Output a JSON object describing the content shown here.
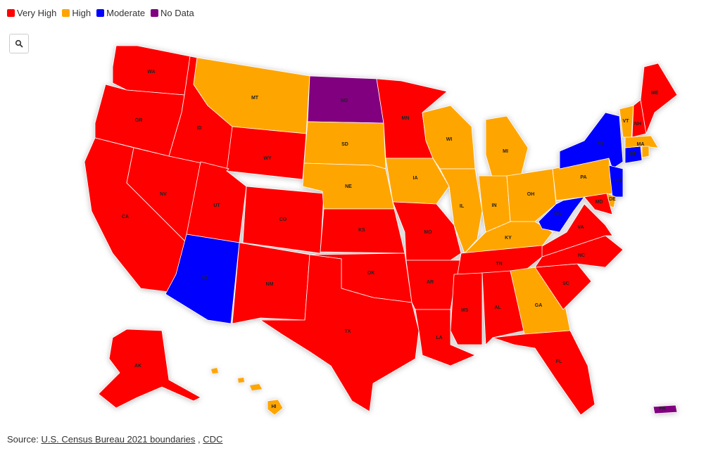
{
  "legend": [
    {
      "label": "Very High",
      "color": "#ff0000"
    },
    {
      "label": "High",
      "color": "#ffa500"
    },
    {
      "label": "Moderate",
      "color": "#0000ff"
    },
    {
      "label": "No Data",
      "color": "#800080"
    }
  ],
  "states": [
    {
      "abbr": "WA",
      "level": "Very High"
    },
    {
      "abbr": "OR",
      "level": "Very High"
    },
    {
      "abbr": "CA",
      "level": "Very High"
    },
    {
      "abbr": "NV",
      "level": "Very High"
    },
    {
      "abbr": "ID",
      "level": "Very High"
    },
    {
      "abbr": "MT",
      "level": "High"
    },
    {
      "abbr": "WY",
      "level": "Very High"
    },
    {
      "abbr": "UT",
      "level": "Very High"
    },
    {
      "abbr": "CO",
      "level": "Very High"
    },
    {
      "abbr": "AZ",
      "level": "Moderate"
    },
    {
      "abbr": "NM",
      "level": "Very High"
    },
    {
      "abbr": "ND",
      "level": "No Data"
    },
    {
      "abbr": "SD",
      "level": "High"
    },
    {
      "abbr": "NE",
      "level": "High"
    },
    {
      "abbr": "KS",
      "level": "Very High"
    },
    {
      "abbr": "OK",
      "level": "Very High"
    },
    {
      "abbr": "TX",
      "level": "Very High"
    },
    {
      "abbr": "MN",
      "level": "Very High"
    },
    {
      "abbr": "IA",
      "level": "High"
    },
    {
      "abbr": "MO",
      "level": "Very High"
    },
    {
      "abbr": "AR",
      "level": "Very High"
    },
    {
      "abbr": "LA",
      "level": "Very High"
    },
    {
      "abbr": "WI",
      "level": "High"
    },
    {
      "abbr": "IL",
      "level": "High"
    },
    {
      "abbr": "MI",
      "level": "High"
    },
    {
      "abbr": "IN",
      "level": "High"
    },
    {
      "abbr": "OH",
      "level": "High"
    },
    {
      "abbr": "KY",
      "level": "High"
    },
    {
      "abbr": "TN",
      "level": "Very High"
    },
    {
      "abbr": "MS",
      "level": "Very High"
    },
    {
      "abbr": "AL",
      "level": "Very High"
    },
    {
      "abbr": "GA",
      "level": "High"
    },
    {
      "abbr": "FL",
      "level": "Very High"
    },
    {
      "abbr": "SC",
      "level": "Very High"
    },
    {
      "abbr": "NC",
      "level": "Very High"
    },
    {
      "abbr": "VA",
      "level": "Very High"
    },
    {
      "abbr": "WV",
      "level": "Moderate"
    },
    {
      "abbr": "PA",
      "level": "High"
    },
    {
      "abbr": "NY",
      "level": "Moderate"
    },
    {
      "abbr": "NJ",
      "level": "Moderate"
    },
    {
      "abbr": "DE",
      "level": "High"
    },
    {
      "abbr": "MD",
      "level": "Very High"
    },
    {
      "abbr": "CT",
      "level": "Moderate"
    },
    {
      "abbr": "MA",
      "level": "High"
    },
    {
      "abbr": "VT",
      "level": "High"
    },
    {
      "abbr": "NH",
      "level": "Very High"
    },
    {
      "abbr": "ME",
      "level": "Very High"
    },
    {
      "abbr": null,
      "level": "High"
    },
    {
      "abbr": "AK",
      "level": "Very High"
    },
    {
      "abbr": "HI",
      "level": "High"
    },
    {
      "abbr": "PR",
      "level": "No Data"
    }
  ],
  "source": {
    "prefix": "Source:",
    "links": [
      "U.S. Census Bureau 2021 boundaries",
      "CDC"
    ],
    "separator": " , "
  }
}
